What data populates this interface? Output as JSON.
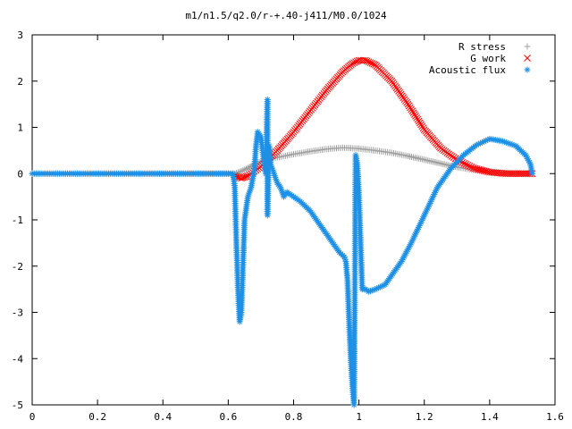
{
  "chart_data": {
    "type": "scatter",
    "title": "m1/n1.5/q2.0/r-+.40-j411/M0.0/1024",
    "xlabel": "",
    "ylabel": "",
    "xlim": [
      0,
      1.6
    ],
    "ylim": [
      -5,
      3
    ],
    "x_ticks": [
      "0",
      "0.2",
      "0.4",
      "0.6",
      "0.8",
      "1",
      "1.2",
      "1.4",
      "1.6"
    ],
    "y_ticks": [
      "3",
      "2",
      "1",
      "0",
      "-1",
      "-2",
      "-3",
      "-4",
      "-5"
    ],
    "grid": false,
    "legend_position": "top-right",
    "series": [
      {
        "name": "R stress",
        "marker": "plus",
        "color": "#a0a0a0",
        "points": [
          [
            0,
            0
          ],
          [
            0.62,
            0
          ],
          [
            0.64,
            0.05
          ],
          [
            0.66,
            0.12
          ],
          [
            0.68,
            0.2
          ],
          [
            0.7,
            0.26
          ],
          [
            0.72,
            0.3
          ],
          [
            0.75,
            0.35
          ],
          [
            0.8,
            0.42
          ],
          [
            0.85,
            0.48
          ],
          [
            0.9,
            0.53
          ],
          [
            0.95,
            0.56
          ],
          [
            1.0,
            0.54
          ],
          [
            1.05,
            0.5
          ],
          [
            1.1,
            0.45
          ],
          [
            1.15,
            0.38
          ],
          [
            1.2,
            0.3
          ],
          [
            1.25,
            0.22
          ],
          [
            1.3,
            0.14
          ],
          [
            1.35,
            0.08
          ],
          [
            1.4,
            0.04
          ],
          [
            1.45,
            0.01
          ],
          [
            1.5,
            0
          ],
          [
            1.53,
            0
          ]
        ]
      },
      {
        "name": "G work",
        "marker": "x",
        "color": "#ff0000",
        "points": [
          [
            0.62,
            -0.05
          ],
          [
            0.64,
            -0.1
          ],
          [
            0.66,
            -0.05
          ],
          [
            0.68,
            0.05
          ],
          [
            0.7,
            0.15
          ],
          [
            0.72,
            0.3
          ],
          [
            0.75,
            0.5
          ],
          [
            0.8,
            0.9
          ],
          [
            0.85,
            1.35
          ],
          [
            0.9,
            1.8
          ],
          [
            0.95,
            2.2
          ],
          [
            0.98,
            2.38
          ],
          [
            1.0,
            2.45
          ],
          [
            1.02,
            2.45
          ],
          [
            1.05,
            2.35
          ],
          [
            1.1,
            2.0
          ],
          [
            1.15,
            1.5
          ],
          [
            1.2,
            0.95
          ],
          [
            1.25,
            0.55
          ],
          [
            1.3,
            0.3
          ],
          [
            1.35,
            0.12
          ],
          [
            1.4,
            0.03
          ],
          [
            1.45,
            0.0
          ],
          [
            1.5,
            0
          ],
          [
            1.53,
            0
          ]
        ]
      },
      {
        "name": "Acoustic flux",
        "marker": "star",
        "color": "#1e90e6",
        "points": [
          [
            0,
            0
          ],
          [
            0.6,
            0
          ],
          [
            0.615,
            0
          ],
          [
            0.62,
            -0.3
          ],
          [
            0.625,
            -1.5
          ],
          [
            0.63,
            -2.5
          ],
          [
            0.635,
            -3.2
          ],
          [
            0.64,
            -3.0
          ],
          [
            0.645,
            -2.0
          ],
          [
            0.65,
            -1.0
          ],
          [
            0.66,
            -0.5
          ],
          [
            0.67,
            -0.3
          ],
          [
            0.68,
            0.1
          ],
          [
            0.685,
            0.6
          ],
          [
            0.69,
            0.9
          ],
          [
            0.7,
            0.8
          ],
          [
            0.705,
            0.5
          ],
          [
            0.71,
            0.2
          ],
          [
            0.715,
            0.0
          ],
          [
            0.72,
            1.6
          ],
          [
            0.72,
            -0.9
          ],
          [
            0.725,
            0.6
          ],
          [
            0.73,
            0.2
          ],
          [
            0.74,
            0.0
          ],
          [
            0.75,
            -0.2
          ],
          [
            0.76,
            -0.3
          ],
          [
            0.77,
            -0.5
          ],
          [
            0.78,
            -0.4
          ],
          [
            0.8,
            -0.5
          ],
          [
            0.82,
            -0.6
          ],
          [
            0.85,
            -0.8
          ],
          [
            0.88,
            -1.1
          ],
          [
            0.9,
            -1.3
          ],
          [
            0.92,
            -1.5
          ],
          [
            0.94,
            -1.7
          ],
          [
            0.955,
            -1.8
          ],
          [
            0.96,
            -1.9
          ],
          [
            0.965,
            -2.3
          ],
          [
            0.97,
            -3.2
          ],
          [
            0.975,
            -4.0
          ],
          [
            0.98,
            -4.6
          ],
          [
            0.985,
            -5.0
          ],
          [
            0.99,
            0.4
          ],
          [
            0.995,
            0.2
          ],
          [
            1.0,
            -0.5
          ],
          [
            1.005,
            -1.5
          ],
          [
            1.01,
            -2.5
          ],
          [
            1.015,
            -2.5
          ],
          [
            1.02,
            -2.5
          ],
          [
            1.03,
            -2.55
          ],
          [
            1.05,
            -2.5
          ],
          [
            1.08,
            -2.4
          ],
          [
            1.1,
            -2.2
          ],
          [
            1.13,
            -1.9
          ],
          [
            1.16,
            -1.5
          ],
          [
            1.2,
            -0.9
          ],
          [
            1.24,
            -0.3
          ],
          [
            1.28,
            0.1
          ],
          [
            1.32,
            0.4
          ],
          [
            1.36,
            0.62
          ],
          [
            1.4,
            0.75
          ],
          [
            1.44,
            0.7
          ],
          [
            1.48,
            0.6
          ],
          [
            1.51,
            0.4
          ],
          [
            1.525,
            0.2
          ],
          [
            1.53,
            0.0
          ]
        ]
      }
    ]
  }
}
